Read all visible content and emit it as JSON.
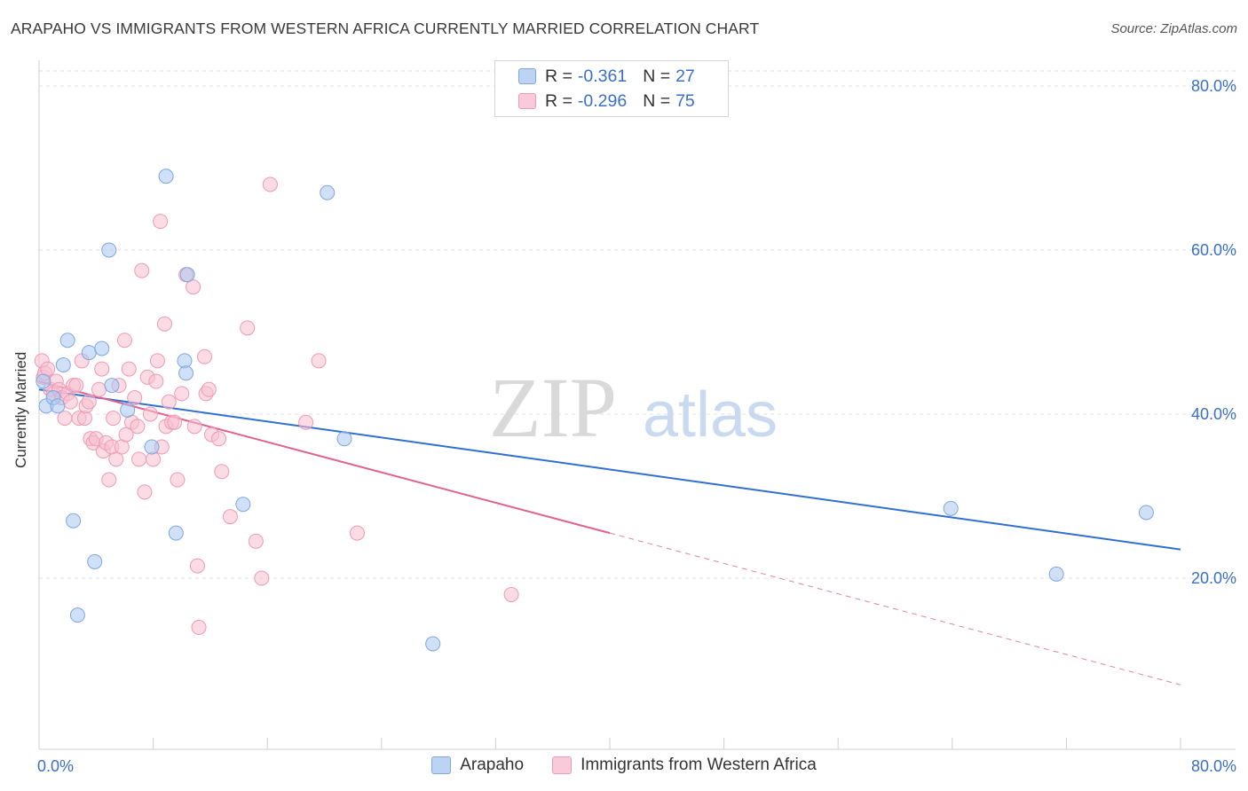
{
  "chart_data": {
    "type": "scatter",
    "title": "ARAPAHO VS IMMIGRANTS FROM WESTERN AFRICA CURRENTLY MARRIED CORRELATION CHART",
    "source": "Source: ZipAtlas.com",
    "watermark": "ZIPatlas",
    "xlabel": "",
    "ylabel": "Currently Married",
    "xlim": [
      0,
      80
    ],
    "ylim": [
      0,
      80
    ],
    "x_tick_labels": [
      "0.0%",
      "80.0%"
    ],
    "y_tick_labels": [
      "20.0%",
      "40.0%",
      "60.0%",
      "80.0%"
    ],
    "y_ticks": [
      20,
      40,
      60,
      80
    ],
    "grid": true,
    "legend_position": "top-center",
    "series": [
      {
        "name": "Arapaho",
        "color": "#a9c7f0",
        "edge": "#7fa7e0",
        "line_color": "#2f6fd0",
        "R": "-0.361",
        "N": "27",
        "trend": {
          "x0": 0,
          "y0": 43.0,
          "x1": 80,
          "y1": 23.5,
          "solid_until": 80
        },
        "points": [
          [
            0.3,
            44.0
          ],
          [
            0.5,
            41.0
          ],
          [
            1.0,
            42.0
          ],
          [
            1.3,
            41.0
          ],
          [
            1.7,
            46.0
          ],
          [
            2.0,
            49.0
          ],
          [
            2.4,
            27.0
          ],
          [
            2.7,
            15.5
          ],
          [
            3.5,
            47.5
          ],
          [
            3.9,
            22.0
          ],
          [
            4.4,
            48.0
          ],
          [
            4.9,
            60.0
          ],
          [
            5.1,
            43.5
          ],
          [
            6.2,
            40.5
          ],
          [
            7.9,
            36.0
          ],
          [
            8.9,
            69.0
          ],
          [
            9.6,
            25.5
          ],
          [
            10.2,
            46.5
          ],
          [
            10.3,
            45.0
          ],
          [
            10.4,
            57.0
          ],
          [
            14.3,
            29.0
          ],
          [
            20.2,
            67.0
          ],
          [
            21.4,
            37.0
          ],
          [
            27.6,
            12.0
          ],
          [
            63.9,
            28.5
          ],
          [
            71.3,
            20.5
          ],
          [
            77.6,
            28.0
          ]
        ]
      },
      {
        "name": "Immigrants from Western Africa",
        "color": "#f7bfd0",
        "edge": "#ee9ab5",
        "line_color": "#e0628e",
        "R": "-0.296",
        "N": "75",
        "trend": {
          "x0": 0,
          "y0": 44.0,
          "x1": 80,
          "y1": 7.0,
          "solid_until": 40
        },
        "points": [
          [
            0.2,
            46.5
          ],
          [
            0.3,
            44.5
          ],
          [
            0.4,
            45.0
          ],
          [
            0.6,
            45.5
          ],
          [
            0.8,
            43.0
          ],
          [
            1.0,
            42.5
          ],
          [
            1.2,
            44.0
          ],
          [
            1.4,
            43.0
          ],
          [
            1.6,
            42.0
          ],
          [
            1.8,
            39.5
          ],
          [
            2.0,
            42.5
          ],
          [
            2.2,
            41.5
          ],
          [
            2.4,
            43.5
          ],
          [
            2.6,
            43.5
          ],
          [
            2.8,
            39.5
          ],
          [
            3.0,
            46.5
          ],
          [
            3.2,
            39.5
          ],
          [
            3.3,
            41.0
          ],
          [
            3.5,
            41.5
          ],
          [
            3.6,
            37.0
          ],
          [
            3.8,
            36.5
          ],
          [
            4.0,
            37.0
          ],
          [
            4.2,
            43.0
          ],
          [
            4.4,
            45.5
          ],
          [
            4.5,
            35.5
          ],
          [
            4.7,
            36.5
          ],
          [
            4.9,
            32.0
          ],
          [
            5.1,
            36.0
          ],
          [
            5.2,
            39.5
          ],
          [
            5.4,
            34.5
          ],
          [
            5.6,
            43.5
          ],
          [
            5.8,
            36.0
          ],
          [
            6.0,
            49.0
          ],
          [
            6.1,
            37.5
          ],
          [
            6.3,
            45.5
          ],
          [
            6.5,
            39.0
          ],
          [
            6.7,
            42.0
          ],
          [
            6.9,
            38.5
          ],
          [
            7.0,
            34.5
          ],
          [
            7.2,
            57.5
          ],
          [
            7.4,
            30.5
          ],
          [
            7.6,
            44.5
          ],
          [
            7.8,
            40.0
          ],
          [
            8.0,
            34.5
          ],
          [
            8.2,
            44.0
          ],
          [
            8.3,
            46.5
          ],
          [
            8.5,
            63.5
          ],
          [
            8.6,
            36.0
          ],
          [
            8.8,
            51.0
          ],
          [
            8.9,
            38.5
          ],
          [
            9.1,
            41.5
          ],
          [
            9.3,
            39.0
          ],
          [
            9.5,
            39.0
          ],
          [
            9.7,
            32.0
          ],
          [
            10.0,
            42.5
          ],
          [
            10.3,
            57.0
          ],
          [
            10.8,
            55.5
          ],
          [
            10.9,
            38.5
          ],
          [
            11.1,
            21.5
          ],
          [
            11.2,
            14.0
          ],
          [
            11.6,
            47.0
          ],
          [
            11.7,
            42.5
          ],
          [
            11.9,
            43.0
          ],
          [
            12.1,
            37.5
          ],
          [
            12.6,
            37.0
          ],
          [
            12.8,
            33.0
          ],
          [
            13.4,
            27.5
          ],
          [
            14.6,
            50.5
          ],
          [
            15.2,
            24.5
          ],
          [
            15.6,
            20.0
          ],
          [
            16.2,
            68.0
          ],
          [
            18.7,
            39.0
          ],
          [
            19.6,
            46.5
          ],
          [
            22.3,
            25.5
          ],
          [
            33.1,
            18.0
          ]
        ]
      }
    ]
  }
}
